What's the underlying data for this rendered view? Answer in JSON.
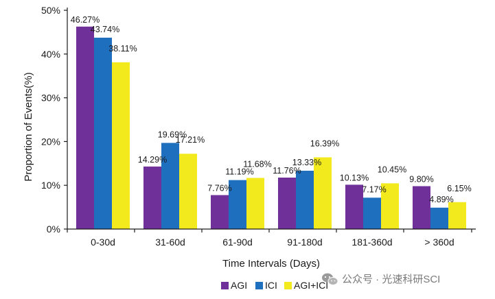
{
  "chart_data": {
    "type": "bar",
    "title": "",
    "xlabel": "Time Intervals (Days)",
    "ylabel": "Proportion of Events(%)",
    "ylim": [
      0,
      50
    ],
    "yticks": [
      "0%",
      "10%",
      "20%",
      "30%",
      "40%",
      "50%"
    ],
    "grid": false,
    "legend_position": "bottom",
    "categories": [
      "0-30d",
      "31-60d",
      "61-90d",
      "91-180d",
      "181-360d",
      "> 360d"
    ],
    "series": [
      {
        "name": "AGI",
        "color": "#70309a",
        "values": [
          46.27,
          14.29,
          7.76,
          11.76,
          10.13,
          9.8
        ],
        "labels": [
          "46.27%",
          "14.29%",
          "7.76%",
          "11.76%",
          "10.13%",
          "9.80%"
        ]
      },
      {
        "name": "ICI",
        "color": "#1f6fbf",
        "values": [
          43.74,
          19.69,
          11.19,
          13.33,
          7.17,
          4.89
        ],
        "labels": [
          "43.74%",
          "19.69%",
          "11.19%",
          "13.33%",
          "7.17%",
          "4.89%"
        ]
      },
      {
        "name": "AGI+ICI",
        "color": "#f2ea1c",
        "values": [
          38.11,
          17.21,
          11.68,
          16.39,
          10.45,
          6.15
        ],
        "labels": [
          "38.11%",
          "17.21%",
          "11.68%",
          "16.39%",
          "10.45%",
          "6.15%"
        ]
      }
    ]
  },
  "watermark": {
    "text": "公众号 · 光速科研SCI",
    "icon": "wechat-icon"
  }
}
